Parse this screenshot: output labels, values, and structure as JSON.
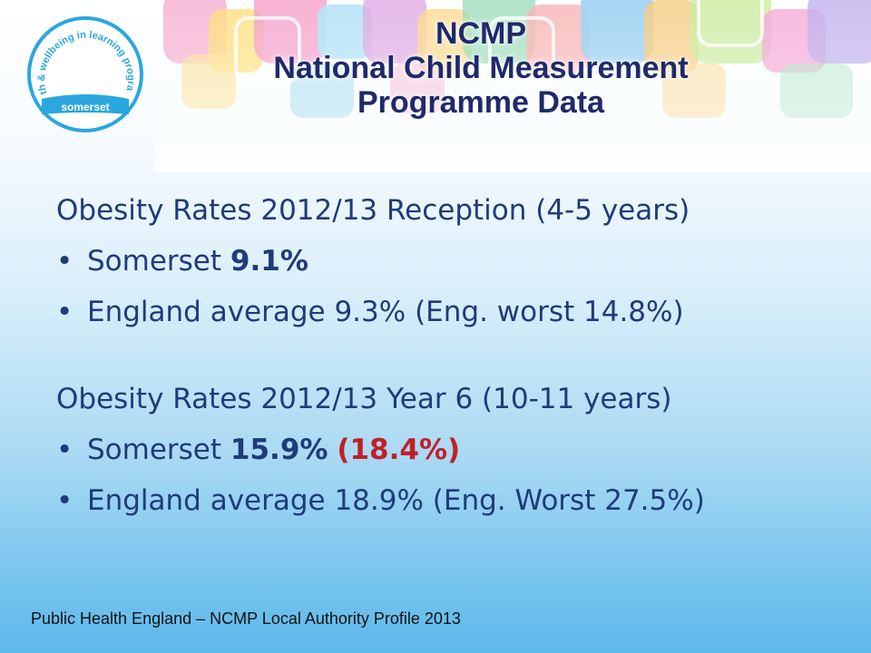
{
  "logo": {
    "arc_text": "health & wellbeing in learning programme",
    "place": "somerset"
  },
  "title": {
    "line1": "NCMP",
    "line2": "National Child Measurement",
    "line3": "Programme Data"
  },
  "reception": {
    "heading": "Obesity Rates  2012/13 Reception  (4-5 years)",
    "somerset_label": "Somerset ",
    "somerset_value": "9.1%",
    "england": "England average 9.3%  (Eng. worst 14.8%)"
  },
  "year6": {
    "heading": "Obesity Rates 2012/13 Year 6 (10-11 years)",
    "somerset_label": "Somerset ",
    "somerset_value": "15.9%",
    "somerset_alt": "(18.4%)",
    "england": "England average 18.9% (Eng. Worst 27.5%)"
  },
  "footer": "Public Health England – NCMP Local Authority Profile 2013",
  "colors": {
    "title": "#1f2a6b",
    "body_text": "#1f3b7a",
    "highlight_red": "#c0202a",
    "logo_blue": "#2aa7de"
  }
}
